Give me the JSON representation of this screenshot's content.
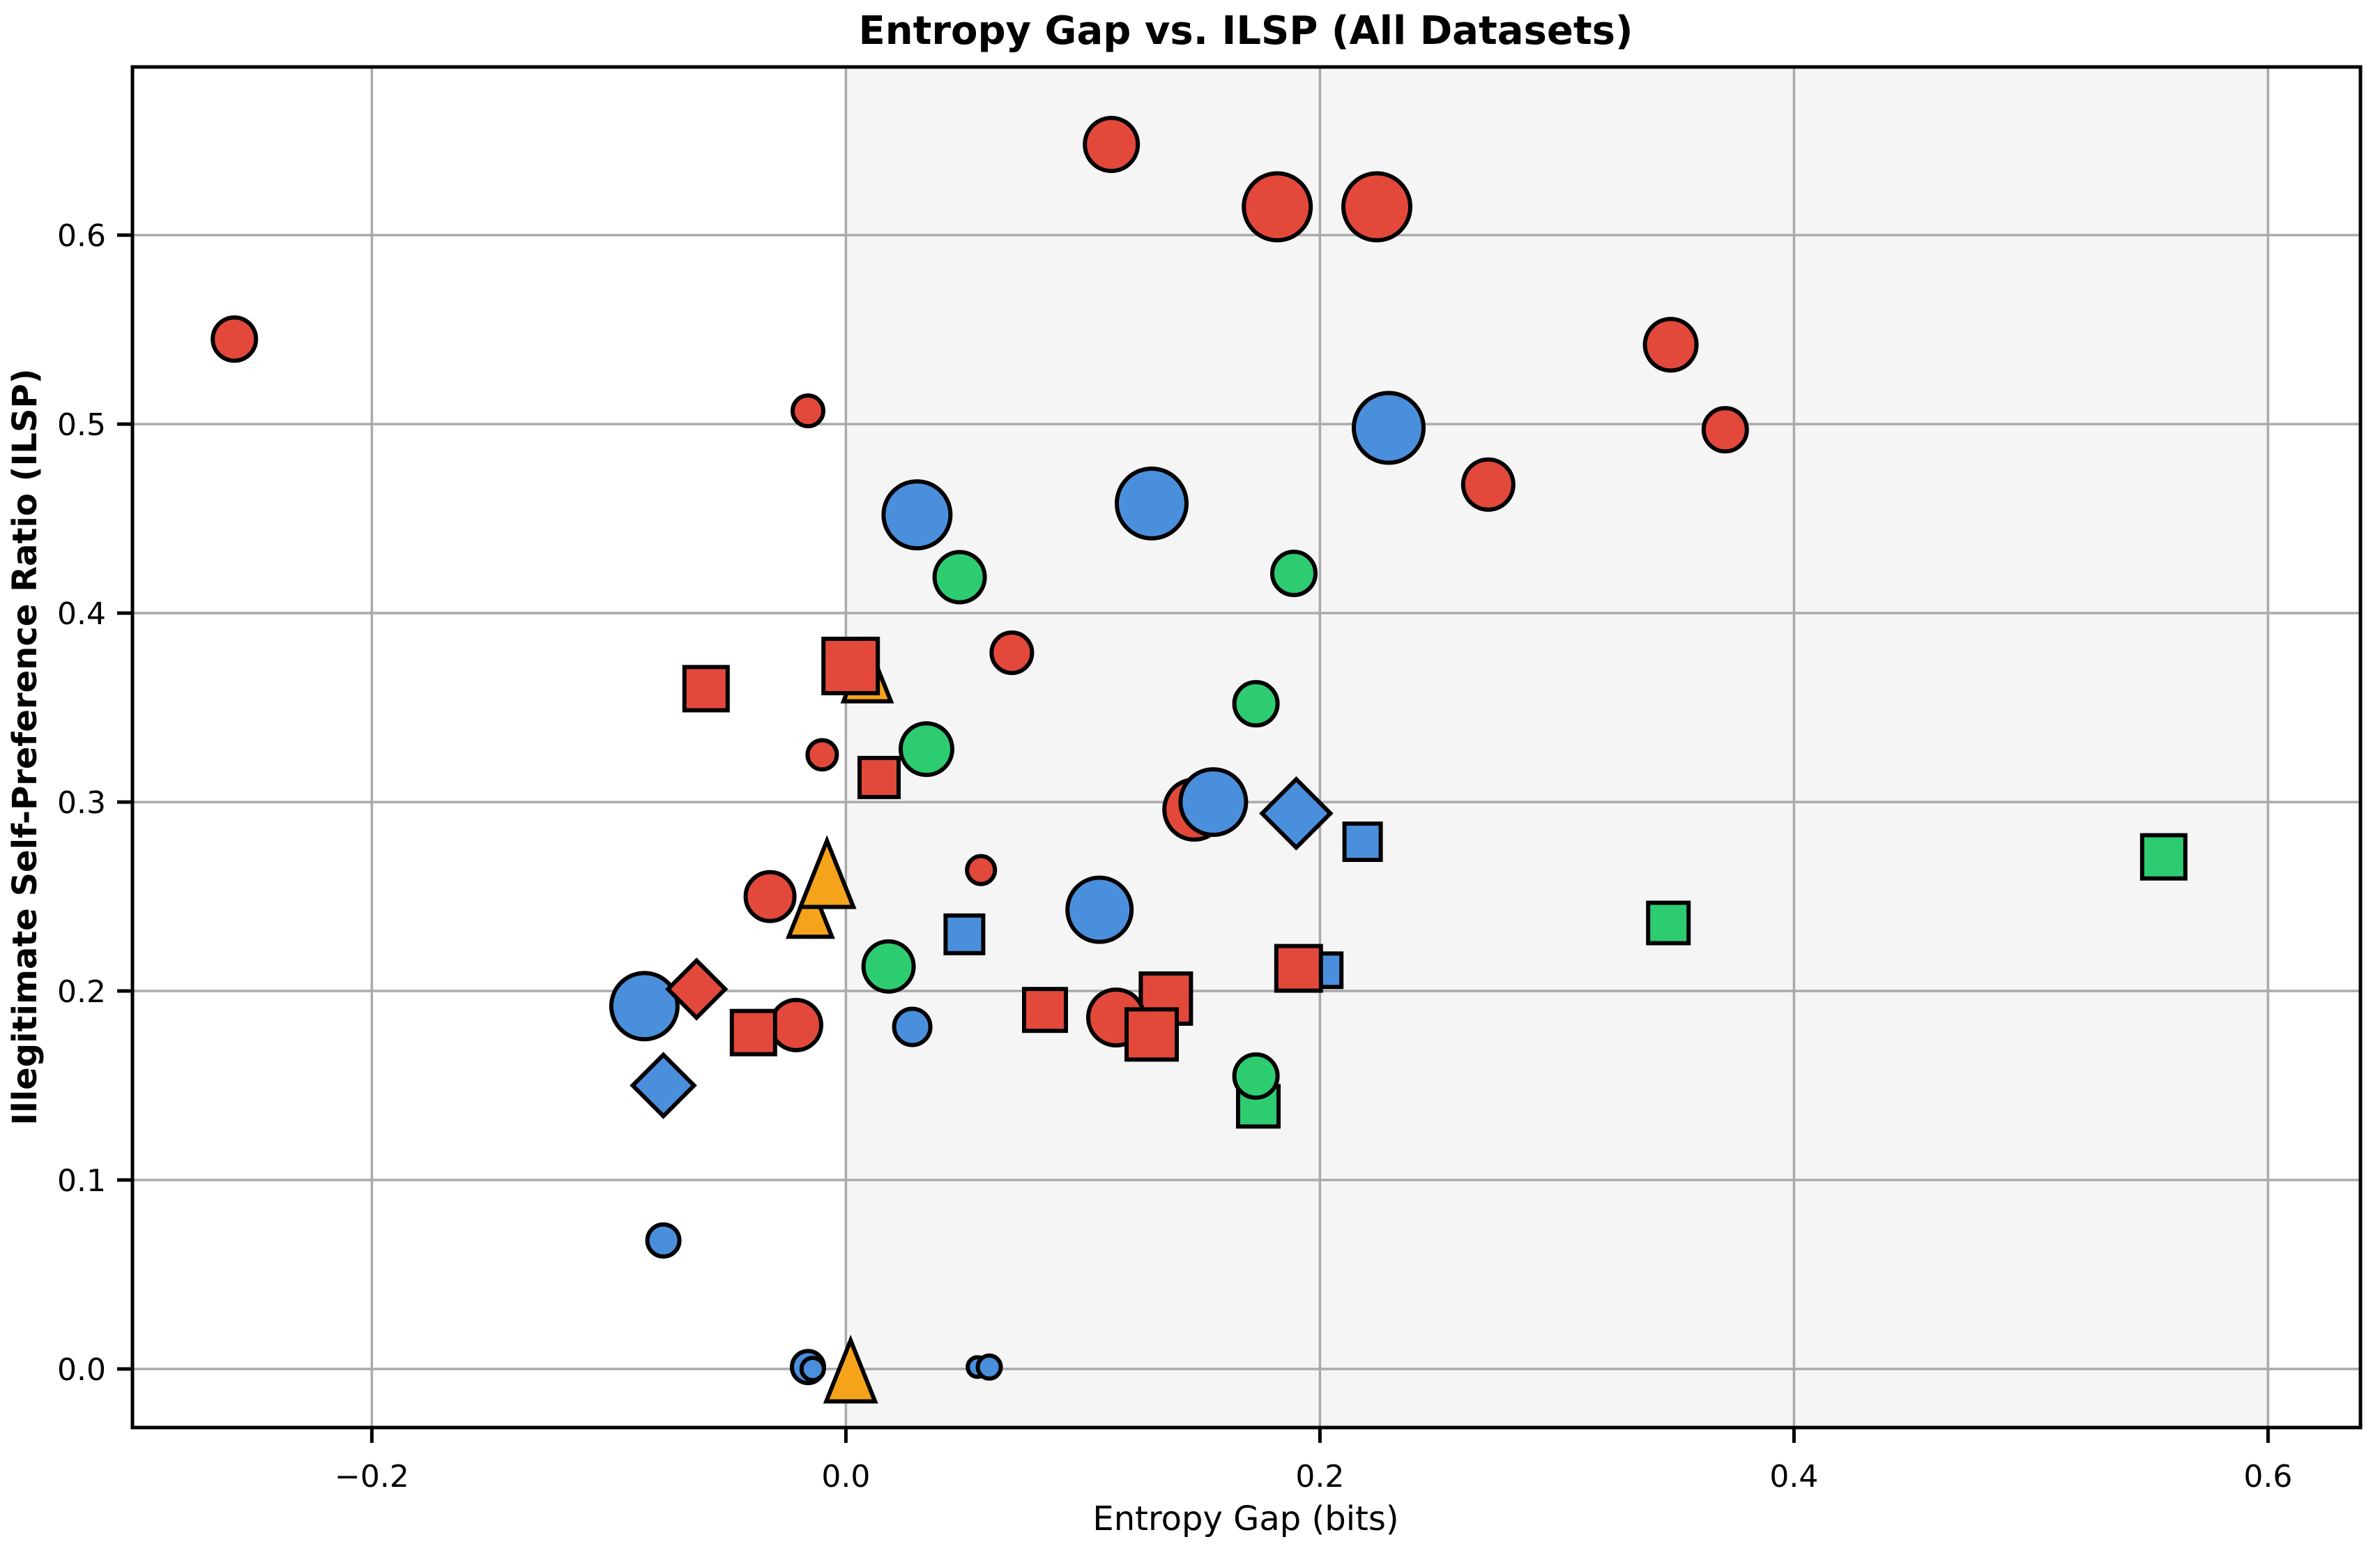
{
  "title": "Entropy Gap vs. ILSP (All Datasets)",
  "chart_data": {
    "type": "scatter",
    "title": "Entropy Gap vs. ILSP (All Datasets)",
    "xlabel": "Entropy Gap (bits)",
    "ylabel": "Illegitimate Self-Preference Ratio (ILSP)",
    "xlim": [
      -0.301,
      0.639
    ],
    "ylim": [
      -0.031,
      0.689
    ],
    "xticks": [
      {
        "v": -0.2,
        "label": "−0.2"
      },
      {
        "v": 0.0,
        "label": "0.0"
      },
      {
        "v": 0.2,
        "label": "0.2"
      },
      {
        "v": 0.4,
        "label": "0.4"
      },
      {
        "v": 0.6,
        "label": "0.6"
      }
    ],
    "yticks": [
      {
        "v": 0.0,
        "label": "0.0"
      },
      {
        "v": 0.1,
        "label": "0.1"
      },
      {
        "v": 0.2,
        "label": "0.2"
      },
      {
        "v": 0.3,
        "label": "0.3"
      },
      {
        "v": 0.4,
        "label": "0.4"
      },
      {
        "v": 0.5,
        "label": "0.5"
      },
      {
        "v": 0.6,
        "label": "0.6"
      }
    ],
    "grid": true,
    "legend": "none",
    "shaded_span": {
      "x0": 0.0,
      "x1": 0.6,
      "fill": "#f5f5f6"
    },
    "colors": {
      "red": "#e2493b",
      "blue": "#4a8fdc",
      "green": "#2ecc71",
      "orange": "#f5a31a",
      "marker_edge": "#000000",
      "grid": "#aaaaaa",
      "spine": "#000000",
      "ylabel_color": "#ee0000",
      "background": "#ffffff"
    },
    "points": [
      {
        "x": -0.258,
        "y": 0.545,
        "shape": "circle",
        "color": "red",
        "d": 62
      },
      {
        "x": -0.016,
        "y": 0.507,
        "shape": "circle",
        "color": "red",
        "d": 44
      },
      {
        "x": 0.112,
        "y": 0.648,
        "shape": "circle",
        "color": "red",
        "d": 76
      },
      {
        "x": 0.182,
        "y": 0.615,
        "shape": "circle",
        "color": "red",
        "d": 96
      },
      {
        "x": 0.224,
        "y": 0.615,
        "shape": "circle",
        "color": "red",
        "d": 96
      },
      {
        "x": 0.348,
        "y": 0.542,
        "shape": "circle",
        "color": "red",
        "d": 74
      },
      {
        "x": 0.371,
        "y": 0.497,
        "shape": "circle",
        "color": "red",
        "d": 62
      },
      {
        "x": 0.271,
        "y": 0.468,
        "shape": "circle",
        "color": "red",
        "d": 72
      },
      {
        "x": 0.229,
        "y": 0.498,
        "shape": "circle",
        "color": "blue",
        "d": 100
      },
      {
        "x": 0.03,
        "y": 0.452,
        "shape": "circle",
        "color": "blue",
        "d": 96
      },
      {
        "x": 0.129,
        "y": 0.458,
        "shape": "circle",
        "color": "blue",
        "d": 100
      },
      {
        "x": 0.048,
        "y": 0.419,
        "shape": "circle",
        "color": "green",
        "d": 72
      },
      {
        "x": 0.189,
        "y": 0.421,
        "shape": "circle",
        "color": "green",
        "d": 62
      },
      {
        "x": 0.07,
        "y": 0.379,
        "shape": "circle",
        "color": "red",
        "d": 58
      },
      {
        "x": 0.009,
        "y": 0.369,
        "shape": "triangle",
        "color": "orange",
        "d": 68
      },
      {
        "x": 0.002,
        "y": 0.372,
        "shape": "square",
        "color": "red",
        "d": 78
      },
      {
        "x": -0.059,
        "y": 0.36,
        "shape": "square",
        "color": "red",
        "d": 62
      },
      {
        "x": 0.173,
        "y": 0.352,
        "shape": "circle",
        "color": "green",
        "d": 62
      },
      {
        "x": -0.01,
        "y": 0.325,
        "shape": "circle",
        "color": "red",
        "d": 42
      },
      {
        "x": 0.034,
        "y": 0.328,
        "shape": "circle",
        "color": "green",
        "d": 74
      },
      {
        "x": 0.014,
        "y": 0.313,
        "shape": "square",
        "color": "red",
        "d": 56
      },
      {
        "x": 0.147,
        "y": 0.296,
        "shape": "circle",
        "color": "red",
        "d": 86
      },
      {
        "x": 0.155,
        "y": 0.3,
        "shape": "circle",
        "color": "blue",
        "d": 94
      },
      {
        "x": 0.19,
        "y": 0.294,
        "shape": "diamond",
        "color": "blue",
        "d": 98
      },
      {
        "x": 0.218,
        "y": 0.279,
        "shape": "square",
        "color": "blue",
        "d": 52
      },
      {
        "x": 0.556,
        "y": 0.271,
        "shape": "square",
        "color": "green",
        "d": 62
      },
      {
        "x": 0.057,
        "y": 0.264,
        "shape": "circle",
        "color": "red",
        "d": 40
      },
      {
        "x": -0.032,
        "y": 0.25,
        "shape": "circle",
        "color": "red",
        "d": 70
      },
      {
        "x": -0.015,
        "y": 0.243,
        "shape": "triangle",
        "color": "orange",
        "d": 62
      },
      {
        "x": -0.008,
        "y": 0.262,
        "shape": "triangle",
        "color": "orange",
        "d": 76
      },
      {
        "x": 0.107,
        "y": 0.243,
        "shape": "circle",
        "color": "blue",
        "d": 92
      },
      {
        "x": 0.347,
        "y": 0.236,
        "shape": "square",
        "color": "green",
        "d": 58
      },
      {
        "x": 0.05,
        "y": 0.23,
        "shape": "square",
        "color": "blue",
        "d": 54
      },
      {
        "x": 0.018,
        "y": 0.213,
        "shape": "circle",
        "color": "green",
        "d": 72
      },
      {
        "x": 0.202,
        "y": 0.211,
        "shape": "square",
        "color": "blue",
        "d": 48
      },
      {
        "x": 0.191,
        "y": 0.212,
        "shape": "square",
        "color": "red",
        "d": 64
      },
      {
        "x": -0.085,
        "y": 0.192,
        "shape": "circle",
        "color": "blue",
        "d": 95
      },
      {
        "x": -0.063,
        "y": 0.201,
        "shape": "diamond",
        "color": "red",
        "d": 82
      },
      {
        "x": -0.021,
        "y": 0.182,
        "shape": "circle",
        "color": "red",
        "d": 72
      },
      {
        "x": -0.039,
        "y": 0.178,
        "shape": "square",
        "color": "red",
        "d": 62
      },
      {
        "x": 0.084,
        "y": 0.19,
        "shape": "square",
        "color": "red",
        "d": 60
      },
      {
        "x": 0.135,
        "y": 0.196,
        "shape": "square",
        "color": "red",
        "d": 72
      },
      {
        "x": 0.114,
        "y": 0.186,
        "shape": "circle",
        "color": "red",
        "d": 80
      },
      {
        "x": 0.129,
        "y": 0.177,
        "shape": "square",
        "color": "red",
        "d": 72
      },
      {
        "x": 0.028,
        "y": 0.181,
        "shape": "circle",
        "color": "blue",
        "d": 52
      },
      {
        "x": 0.174,
        "y": 0.139,
        "shape": "square",
        "color": "green",
        "d": 58
      },
      {
        "x": 0.173,
        "y": 0.155,
        "shape": "circle",
        "color": "green",
        "d": 62
      },
      {
        "x": -0.077,
        "y": 0.15,
        "shape": "diamond",
        "color": "blue",
        "d": 88
      },
      {
        "x": -0.077,
        "y": 0.068,
        "shape": "circle",
        "color": "blue",
        "d": 46
      },
      {
        "x": -0.016,
        "y": 0.001,
        "shape": "circle",
        "color": "blue",
        "d": 46
      },
      {
        "x": -0.014,
        "y": 0.0,
        "shape": "circle",
        "color": "blue",
        "d": 32
      },
      {
        "x": 0.002,
        "y": -0.001,
        "shape": "triangle",
        "color": "orange",
        "d": 70
      },
      {
        "x": 0.0555,
        "y": 0.001,
        "shape": "circle",
        "color": "blue",
        "d": 28
      },
      {
        "x": 0.0605,
        "y": 0.001,
        "shape": "circle",
        "color": "blue",
        "d": 33
      }
    ]
  }
}
